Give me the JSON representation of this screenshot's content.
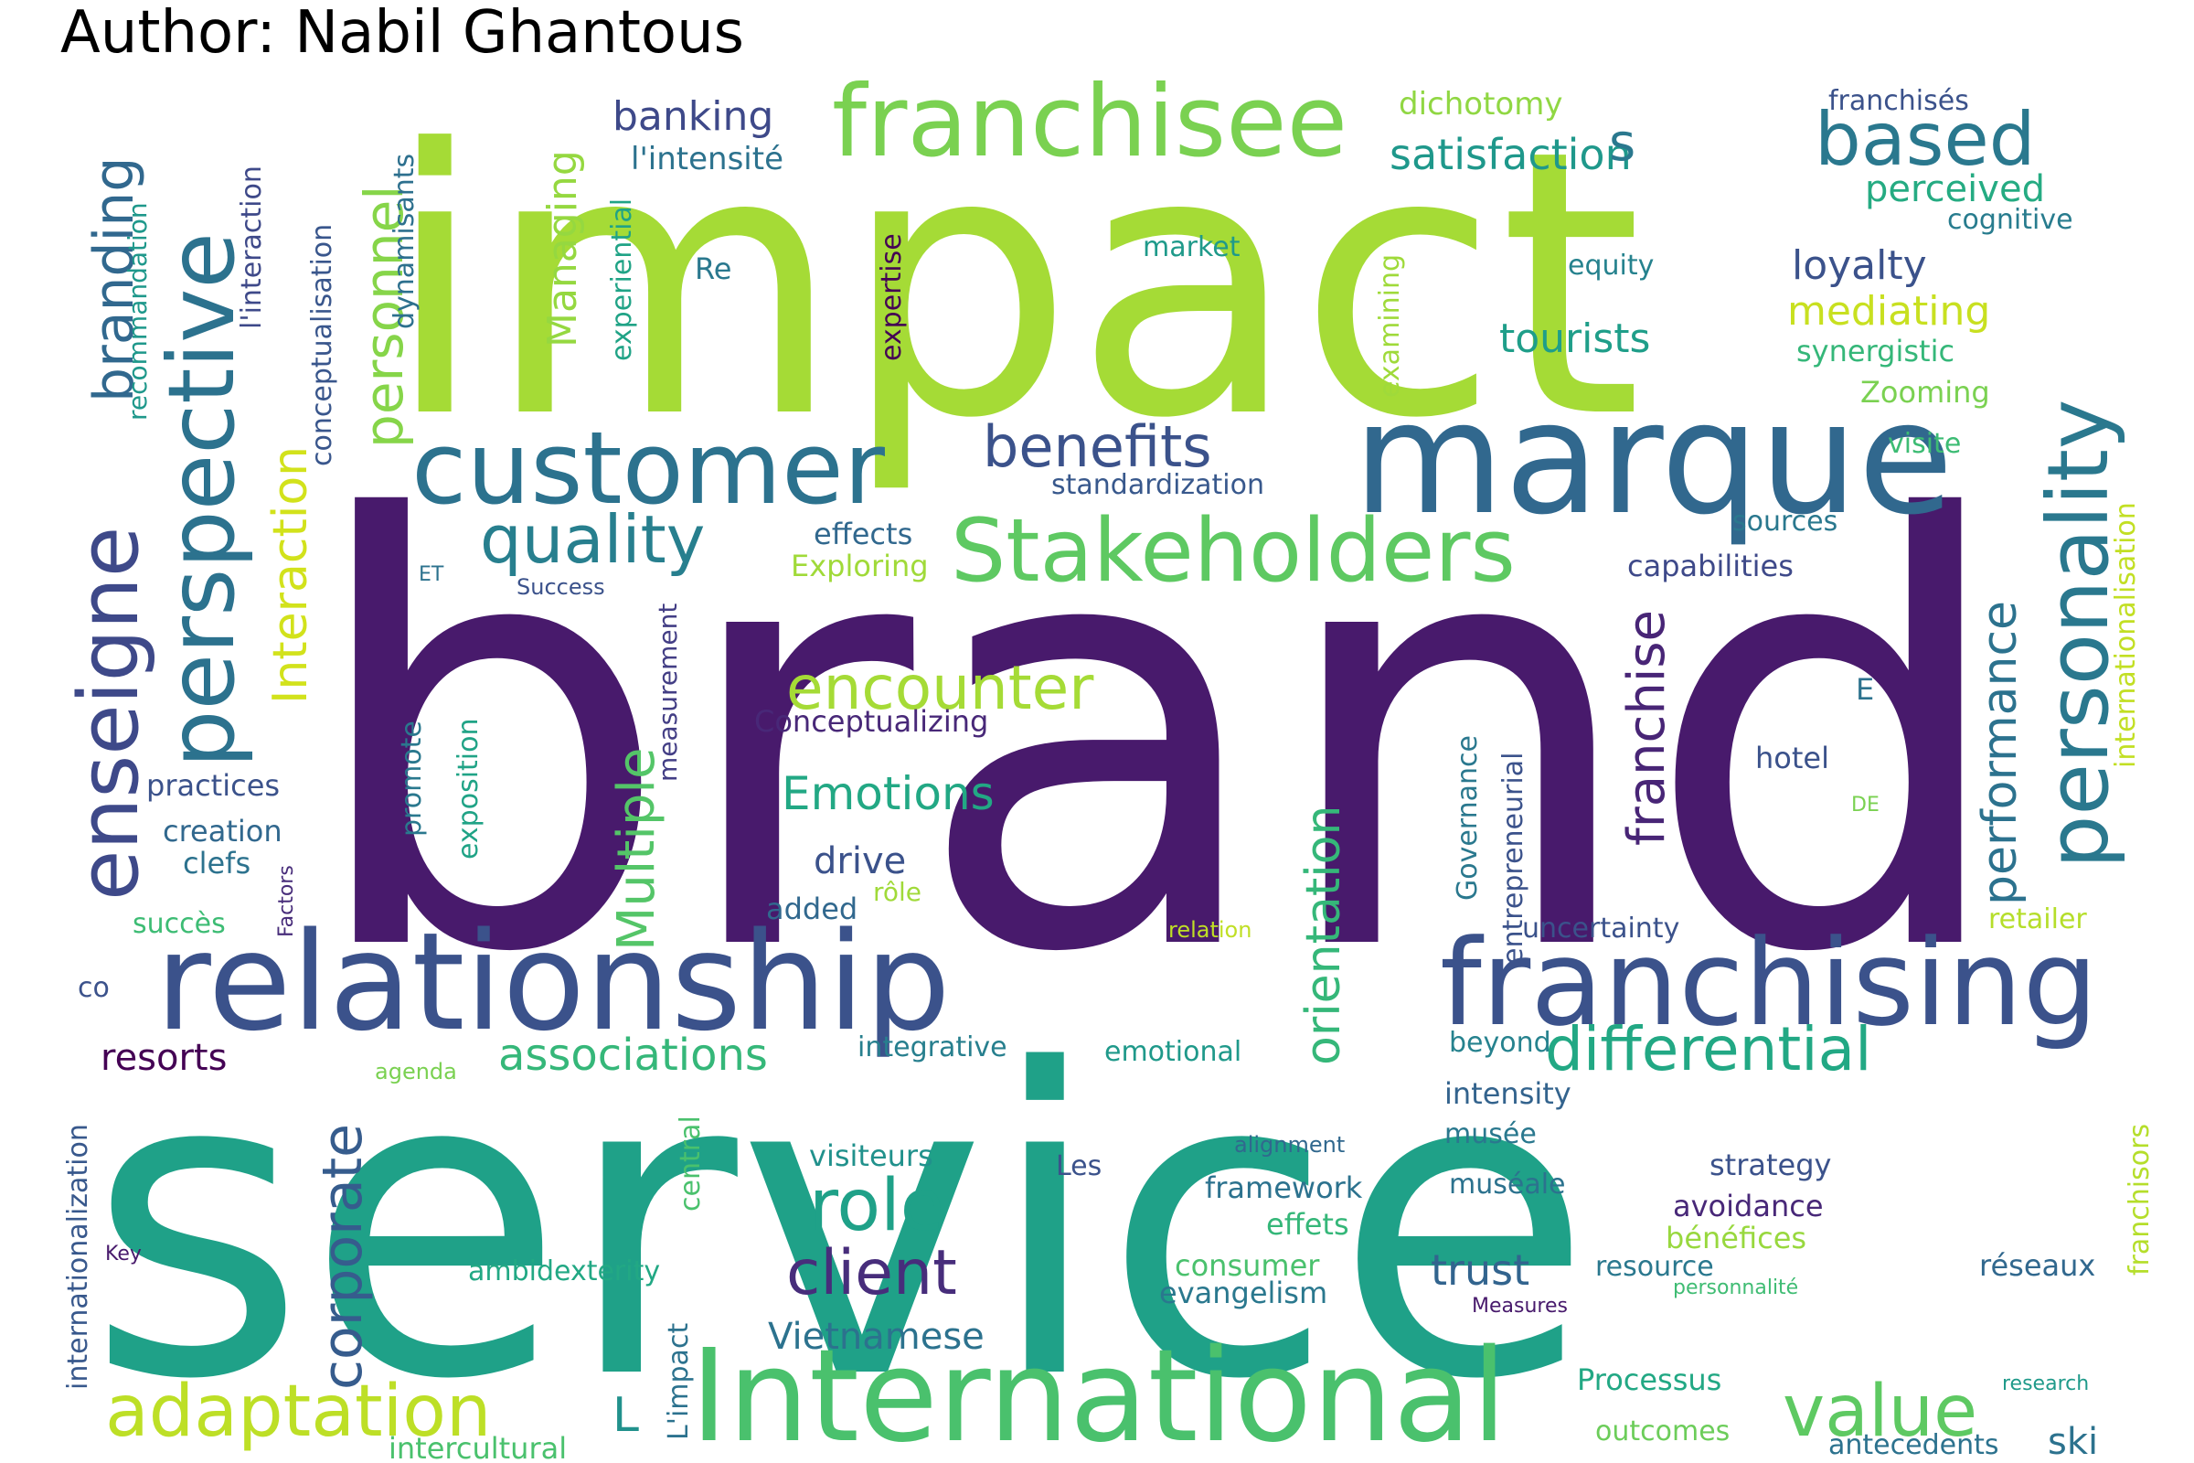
{
  "header": {
    "author": "Author: Nabil Ghantous"
  },
  "words": [
    {
      "text": "brand",
      "color": "#481a6c"
    },
    {
      "text": "impact",
      "color": "#a5db36"
    },
    {
      "text": "service",
      "color": "#1fa188"
    },
    {
      "text": "marque",
      "color": "#31688e"
    },
    {
      "text": "relationship",
      "color": "#3b528b"
    },
    {
      "text": "franchising",
      "color": "#3b528b"
    },
    {
      "text": "International",
      "color": "#4ac16d"
    },
    {
      "text": "customer",
      "color": "#2c728e"
    },
    {
      "text": "Stakeholders",
      "color": "#5ec962"
    },
    {
      "text": "franchisee",
      "color": "#7ad151"
    },
    {
      "text": "perspective",
      "color": "#2c728e"
    },
    {
      "text": "personality",
      "color": "#2a788e"
    },
    {
      "text": "enseigne",
      "color": "#3e4989"
    },
    {
      "text": "quality",
      "color": "#277f8e"
    },
    {
      "text": "encounter",
      "color": "#a5db36"
    },
    {
      "text": "benefits",
      "color": "#3b528b"
    },
    {
      "text": "based",
      "color": "#2a788e"
    },
    {
      "text": "differential",
      "color": "#22a884"
    },
    {
      "text": "adaptation",
      "color": "#bddf26"
    },
    {
      "text": "role",
      "color": "#1fa188"
    },
    {
      "text": "client",
      "color": "#472d7b"
    },
    {
      "text": "value",
      "color": "#5ec962"
    },
    {
      "text": "corporate",
      "color": "#365c8d"
    },
    {
      "text": "associations",
      "color": "#35b779"
    },
    {
      "text": "Emotions",
      "color": "#22a884"
    },
    {
      "text": "Multiple",
      "color": "#54c568"
    },
    {
      "text": "branding",
      "color": "#31688e"
    },
    {
      "text": "personnel",
      "color": "#86d549"
    },
    {
      "text": "Interaction",
      "color": "#d2e21b"
    },
    {
      "text": "orientation",
      "color": "#35b779"
    },
    {
      "text": "performance",
      "color": "#2c728e"
    },
    {
      "text": "franchise",
      "color": "#482576"
    },
    {
      "text": "satisfaction",
      "color": "#1f988b"
    },
    {
      "text": "banking",
      "color": "#3e4989"
    },
    {
      "text": "loyalty",
      "color": "#3b528b"
    },
    {
      "text": "tourists",
      "color": "#1f9e89"
    },
    {
      "text": "mediating",
      "color": "#c8e020"
    },
    {
      "text": "perceived",
      "color": "#25ab82"
    },
    {
      "text": "Vietnamese",
      "color": "#2c728e"
    },
    {
      "text": "trust",
      "color": "#32648e"
    },
    {
      "text": "drive",
      "color": "#3b528b"
    },
    {
      "text": "resorts",
      "color": "#440154"
    },
    {
      "text": "s",
      "color": "#2a788e"
    },
    {
      "text": "ski",
      "color": "#2c728e"
    },
    {
      "text": "L",
      "color": "#21918c"
    },
    {
      "text": "dichotomy",
      "color": "#90d743"
    },
    {
      "text": "l'intensité",
      "color": "#2c728e"
    },
    {
      "text": "franchisés",
      "color": "#3b528b"
    },
    {
      "text": "cognitive",
      "color": "#287c8e"
    },
    {
      "text": "equity",
      "color": "#26828e"
    },
    {
      "text": "synergistic",
      "color": "#35b779"
    },
    {
      "text": "Zooming",
      "color": "#7ad151"
    },
    {
      "text": "visite",
      "color": "#3dbc74"
    },
    {
      "text": "standardization",
      "color": "#38588c"
    },
    {
      "text": "market",
      "color": "#1f9a8a"
    },
    {
      "text": "Re",
      "color": "#2a788e"
    },
    {
      "text": "effects",
      "color": "#31688e"
    },
    {
      "text": "Exploring",
      "color": "#a0da39"
    },
    {
      "text": "Managing",
      "color": "#95d840"
    },
    {
      "text": "expertise",
      "color": "#440154"
    },
    {
      "text": "experiential",
      "color": "#20a386"
    },
    {
      "text": "l'interaction",
      "color": "#3e4989"
    },
    {
      "text": "recommandation",
      "color": "#1f988b"
    },
    {
      "text": "conceptualisation",
      "color": "#39568c"
    },
    {
      "text": "dynamisants",
      "color": "#2d708e"
    },
    {
      "text": "examining",
      "color": "#9fda3a"
    },
    {
      "text": "sources",
      "color": "#2a788e"
    },
    {
      "text": "capabilities",
      "color": "#3e4989"
    },
    {
      "text": "internationalisation",
      "color": "#c2df23"
    },
    {
      "text": "E",
      "color": "#2c728e"
    },
    {
      "text": "hotel",
      "color": "#3b528b"
    },
    {
      "text": "DE",
      "color": "#7ad151"
    },
    {
      "text": "retailer",
      "color": "#b5de2b"
    },
    {
      "text": "Conceptualizing",
      "color": "#482878"
    },
    {
      "text": "measurement",
      "color": "#433e85"
    },
    {
      "text": "Success",
      "color": "#3b528b"
    },
    {
      "text": "ET",
      "color": "#2c728e"
    },
    {
      "text": "practices",
      "color": "#3b528b"
    },
    {
      "text": "creation",
      "color": "#31688e"
    },
    {
      "text": "clefs",
      "color": "#2c728e"
    },
    {
      "text": "succès",
      "color": "#3dbc74"
    },
    {
      "text": "Factors",
      "color": "#472c7a"
    },
    {
      "text": "promote",
      "color": "#2a788e"
    },
    {
      "text": "exposition",
      "color": "#20a386"
    },
    {
      "text": "rôle",
      "color": "#a0da39"
    },
    {
      "text": "added",
      "color": "#31688e"
    },
    {
      "text": "relation",
      "color": "#c0df25"
    },
    {
      "text": "Governance",
      "color": "#2a788e"
    },
    {
      "text": "entrepreneurial",
      "color": "#3b528b"
    },
    {
      "text": "uncertainty",
      "color": "#3b528b"
    },
    {
      "text": "co",
      "color": "#3b528b"
    },
    {
      "text": "internationalization",
      "color": "#38588c"
    },
    {
      "text": "agenda",
      "color": "#7ad151"
    },
    {
      "text": "integrative",
      "color": "#277f8e"
    },
    {
      "text": "emotional",
      "color": "#1f998a"
    },
    {
      "text": "beyond",
      "color": "#26828e"
    },
    {
      "text": "intensity",
      "color": "#33638d"
    },
    {
      "text": "musée",
      "color": "#2a788e"
    },
    {
      "text": "muséale",
      "color": "#2c728e"
    },
    {
      "text": "strategy",
      "color": "#3b528b"
    },
    {
      "text": "avoidance",
      "color": "#482878"
    },
    {
      "text": "bénéfices",
      "color": "#98d83e"
    },
    {
      "text": "réseaux",
      "color": "#31688e"
    },
    {
      "text": "personnalité",
      "color": "#3fbc73"
    },
    {
      "text": "Measures",
      "color": "#481a6c"
    },
    {
      "text": "resource",
      "color": "#2a788e"
    },
    {
      "text": "framework",
      "color": "#2c728e"
    },
    {
      "text": "effets",
      "color": "#35b779"
    },
    {
      "text": "consumer",
      "color": "#4ac16d"
    },
    {
      "text": "evangelism",
      "color": "#2a788e"
    },
    {
      "text": "alignment",
      "color": "#31688e"
    },
    {
      "text": "Les",
      "color": "#3b528b"
    },
    {
      "text": "visiteurs",
      "color": "#21918c"
    },
    {
      "text": "central",
      "color": "#4ac16d"
    },
    {
      "text": "ambidexterity",
      "color": "#22a884"
    },
    {
      "text": "Key",
      "color": "#481a6c"
    },
    {
      "text": "L'impact",
      "color": "#2c728e"
    },
    {
      "text": "intercultural",
      "color": "#4ac16d"
    },
    {
      "text": "Processus",
      "color": "#22a884"
    },
    {
      "text": "outcomes",
      "color": "#6ccd5a"
    },
    {
      "text": "antecedents",
      "color": "#2c728e"
    },
    {
      "text": "research",
      "color": "#1f9a8a"
    },
    {
      "text": "franchisors",
      "color": "#b5de2b"
    }
  ]
}
